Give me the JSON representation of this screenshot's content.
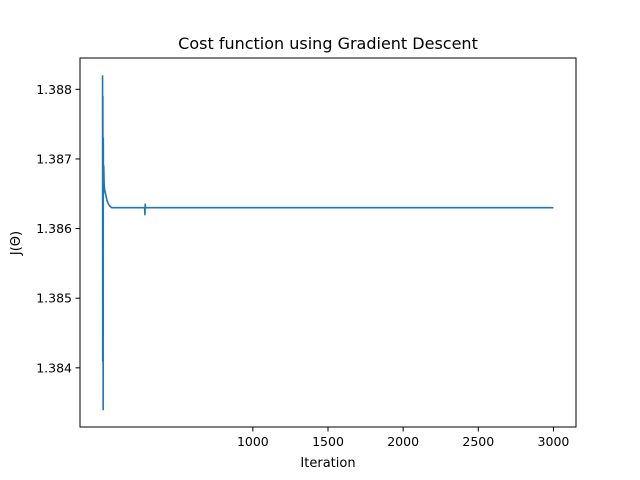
{
  "chart_data": {
    "type": "line",
    "title": "Cost function using Gradient Descent",
    "xlabel": "Iteration",
    "ylabel": "J(Θ)",
    "xlim": [
      -150,
      3150
    ],
    "ylim": [
      1.38315,
      1.38845
    ],
    "xticks": [
      1000,
      1500,
      2000,
      2500,
      3000
    ],
    "xtick_labels": [
      "1000",
      "1500",
      "2000",
      "2500",
      "3000"
    ],
    "yticks": [
      1.384,
      1.385,
      1.386,
      1.387,
      1.388
    ],
    "ytick_labels": [
      "1.384",
      "1.385",
      "1.386",
      "1.387",
      "1.388"
    ],
    "grid": false,
    "color": "#1f77b4",
    "series": [
      {
        "x": [
          0,
          1,
          2,
          3,
          4,
          5,
          6,
          7,
          8,
          10,
          12,
          15,
          20,
          25,
          30,
          40,
          50,
          60,
          80,
          100,
          150,
          200,
          250,
          280,
          282,
          284,
          286,
          300,
          400,
          600,
          1000,
          1500,
          2000,
          2500,
          3000
        ],
        "y": [
          1.3882,
          1.3841,
          1.3879,
          1.3858,
          1.3834,
          1.3873,
          1.3865,
          1.3866,
          1.3869,
          1.3867,
          1.3866,
          1.38655,
          1.3865,
          1.38645,
          1.3864,
          1.38635,
          1.38632,
          1.3863,
          1.3863,
          1.3863,
          1.3863,
          1.3863,
          1.3863,
          1.3863,
          1.3862,
          1.38635,
          1.3863,
          1.3863,
          1.3863,
          1.3863,
          1.3863,
          1.3863,
          1.3863,
          1.3863,
          1.3863
        ]
      }
    ]
  }
}
